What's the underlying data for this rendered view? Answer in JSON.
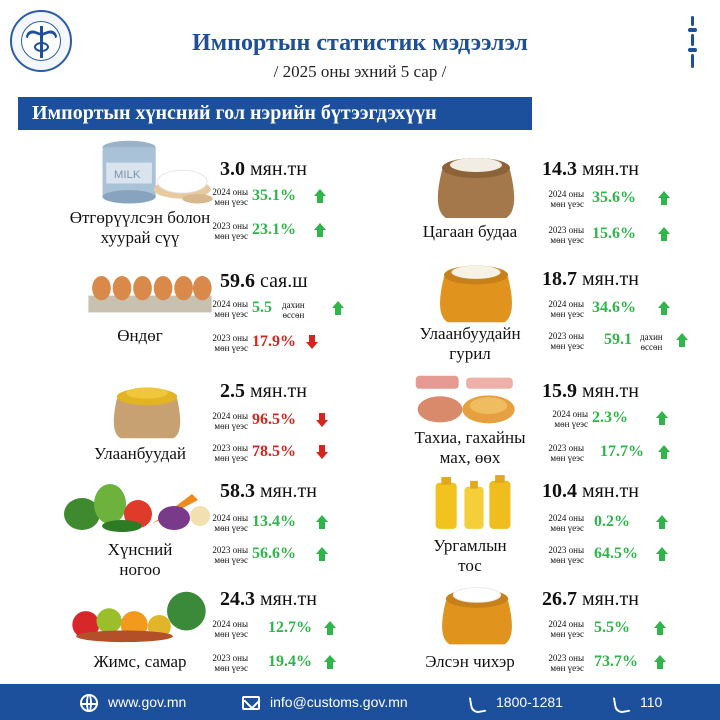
{
  "header": {
    "title": "Импортын статистик мэдээлэл",
    "subtitle": "/ 2025 оны эхний 5 сар /",
    "banner": "Импортын хүнсний гол нэрийн бүтээгдэхүүн"
  },
  "labels": {
    "y2024_l1": "2024 оны",
    "y2024_l2": "мөн үеэс",
    "y2023_l1": "2023 оны",
    "y2023_l2": "мөн үеэс",
    "times_l1": "дахин",
    "times_l2": "өссөн"
  },
  "products": [
    {
      "name1": "Өтгөрүүлсэн болон",
      "name2": "хуурай сүү",
      "amount": "3.0",
      "unit": "мян.тн",
      "v2024": "35.1%",
      "d2024": "up",
      "v2023": "23.1%",
      "d2023": "up",
      "icon": "milk-icon"
    },
    {
      "name1": "Өндөг",
      "name2": "",
      "amount": "59.6",
      "unit": "сая.ш",
      "v2024": "5.5",
      "d2024": "up",
      "v2023": "17.9%",
      "d2023": "down",
      "icon": "eggs-icon"
    },
    {
      "name1": "Улаанбуудай",
      "name2": "",
      "amount": "2.5",
      "unit": "мян.тн",
      "v2024": "96.5%",
      "d2024": "down",
      "v2023": "78.5%",
      "d2023": "down",
      "icon": "wheat-sack-icon"
    },
    {
      "name1": "Хүнсний",
      "name2": "ногоо",
      "amount": "58.3",
      "unit": "мян.тн",
      "v2024": "13.4%",
      "d2024": "up",
      "v2023": "56.6%",
      "d2023": "up",
      "icon": "vegetables-icon"
    },
    {
      "name1": "Жимс, самар",
      "name2": "",
      "amount": "24.3",
      "unit": "мян.тн",
      "v2024": "12.7%",
      "d2024": "up",
      "v2023": "19.4%",
      "d2023": "up",
      "icon": "fruits-icon"
    },
    {
      "name1": "Цагаан будаа",
      "name2": "",
      "amount": "14.3",
      "unit": "мян.тн",
      "v2024": "35.6%",
      "d2024": "up",
      "v2023": "15.6%",
      "d2023": "up",
      "icon": "rice-sack-icon"
    },
    {
      "name1": "Улаанбуудайн",
      "name2": "гурил",
      "amount": "18.7",
      "unit": "мян.тн",
      "v2024": "34.6%",
      "d2024": "up",
      "v2023": "59.1",
      "d2023": "up",
      "icon": "flour-sack-icon"
    },
    {
      "name1": "Тахиа, гахайны",
      "name2": "мах, өөх",
      "amount": "15.9",
      "unit": "мян.тн",
      "v2024": "2.3%",
      "d2024": "up",
      "v2023": "17.7%",
      "d2023": "up",
      "icon": "meat-icon"
    },
    {
      "name1": "Ургамлын",
      "name2": "тос",
      "amount": "10.4",
      "unit": "мян.тн",
      "v2024": "0.2%",
      "d2024": "up",
      "v2023": "64.5%",
      "d2023": "up",
      "icon": "oil-bottles-icon"
    },
    {
      "name1": "Элсэн чихэр",
      "name2": "",
      "amount": "26.7",
      "unit": "мян.тн",
      "v2024": "5.5%",
      "d2024": "up",
      "v2023": "73.7%",
      "d2023": "up",
      "icon": "sugar-sack-icon"
    }
  ],
  "footer": {
    "website": "www.gov.mn",
    "email": "info@customs.gov.mn",
    "phone": "1800-1281",
    "hotline": "110"
  },
  "colors": {
    "brand": "#1c4f9c",
    "up": "#2fb54a",
    "down": "#d6251c"
  }
}
